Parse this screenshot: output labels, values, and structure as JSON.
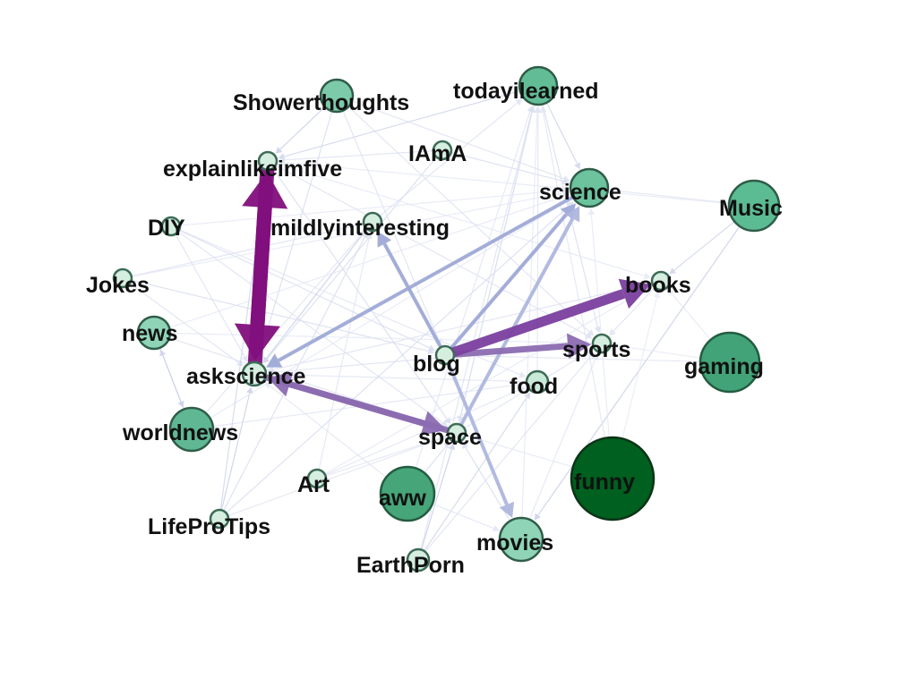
{
  "diagram": {
    "type": "directed-network",
    "nodes": [
      {
        "id": "Showerthoughts",
        "label": "Showerthoughts",
        "fill": "#7ccaa9"
      },
      {
        "id": "todayilearned",
        "label": "todayilearned",
        "fill": "#62bd96"
      },
      {
        "id": "explainlikeimfive",
        "label": "explainlikeimfive",
        "fill": "#d5eee0"
      },
      {
        "id": "IAmA",
        "label": "IAmA",
        "fill": "#d5eee0"
      },
      {
        "id": "science",
        "label": "science",
        "fill": "#6cc39e"
      },
      {
        "id": "Music",
        "label": "Music",
        "fill": "#5bbb93"
      },
      {
        "id": "DIY",
        "label": "DIY",
        "fill": "#d5eee0"
      },
      {
        "id": "mildlyinteresting",
        "label": "mildlyinteresting",
        "fill": "#d5eee0"
      },
      {
        "id": "Jokes",
        "label": "Jokes",
        "fill": "#d5eee0"
      },
      {
        "id": "books",
        "label": "books",
        "fill": "#d5eee0"
      },
      {
        "id": "news",
        "label": "news",
        "fill": "#8fd4b6"
      },
      {
        "id": "sports",
        "label": "sports",
        "fill": "#d5eee0"
      },
      {
        "id": "blog",
        "label": "blog",
        "fill": "#d5eee0"
      },
      {
        "id": "askscience",
        "label": "askscience",
        "fill": "#d5eee0"
      },
      {
        "id": "gaming",
        "label": "gaming",
        "fill": "#42a378"
      },
      {
        "id": "food",
        "label": "food",
        "fill": "#c9e9d8"
      },
      {
        "id": "worldnews",
        "label": "worldnews",
        "fill": "#5fb893"
      },
      {
        "id": "space",
        "label": "space",
        "fill": "#d5eee0"
      },
      {
        "id": "Art",
        "label": "Art",
        "fill": "#d5eee0"
      },
      {
        "id": "aww",
        "label": "aww",
        "fill": "#46a579"
      },
      {
        "id": "funny",
        "label": "funny",
        "fill": "#00601f"
      },
      {
        "id": "LifeProTips",
        "label": "LifeProTips",
        "fill": "#d5eee0"
      },
      {
        "id": "movies",
        "label": "movies",
        "fill": "#8fd4b6"
      },
      {
        "id": "EarthPorn",
        "label": "EarthPorn",
        "fill": "#d5eee0"
      }
    ],
    "edges": [
      {
        "source": "blog",
        "target": "books",
        "weight": 4,
        "color": "#7a3f9e"
      },
      {
        "source": "blog",
        "target": "sports",
        "weight": 3,
        "color": "#8c6bb1"
      },
      {
        "source": "askscience",
        "target": "explainlikeimfive",
        "weight": 5,
        "color": "#810f7c"
      },
      {
        "source": "explainlikeimfive",
        "target": "askscience",
        "weight": 5,
        "color": "#810f7c"
      },
      {
        "source": "askscience",
        "target": "space",
        "weight": 3,
        "color": "#8c6bb1"
      },
      {
        "source": "space",
        "target": "askscience",
        "weight": 3,
        "color": "#8c6bb1"
      },
      {
        "source": "blog",
        "target": "science",
        "weight": 2,
        "color": "#9ea9d6"
      },
      {
        "source": "science",
        "target": "askscience",
        "weight": 2,
        "color": "#9ea9d6"
      },
      {
        "source": "blog",
        "target": "mildlyinteresting",
        "weight": 2,
        "color": "#9ea9d6"
      },
      {
        "source": "blog",
        "target": "movies",
        "weight": 2,
        "color": "#aeb6de"
      },
      {
        "source": "space",
        "target": "science",
        "weight": 2,
        "color": "#aeb6de"
      },
      {
        "source": "LifeProTips",
        "target": "askscience",
        "weight": 1,
        "color": "#c1c8e6"
      },
      {
        "source": "Showerthoughts",
        "target": "explainlikeimfive",
        "weight": 1,
        "color": "#c1c8e6"
      },
      {
        "source": "todayilearned",
        "target": "explainlikeimfive",
        "weight": 1,
        "color": "#c9cfe9"
      },
      {
        "source": "Music",
        "target": "movies",
        "weight": 1,
        "color": "#c1c8e6"
      },
      {
        "source": "Music",
        "target": "books",
        "weight": 1,
        "color": "#c9cfe9"
      },
      {
        "source": "news",
        "target": "worldnews",
        "weight": 1,
        "color": "#c1c8e6"
      },
      {
        "source": "worldnews",
        "target": "news",
        "weight": 1,
        "color": "#c9cfe9"
      },
      {
        "source": "EarthPorn",
        "target": "space",
        "weight": 1,
        "color": "#c1c8e6"
      },
      {
        "source": "EarthPorn",
        "target": "food",
        "weight": 1,
        "color": "#c9cfe9"
      },
      {
        "source": "mildlyinteresting",
        "target": "askscience",
        "weight": 1,
        "color": "#c1c8e6"
      },
      {
        "source": "todayilearned",
        "target": "science",
        "weight": 1,
        "color": "#c9cfe9"
      },
      {
        "source": "IAmA",
        "target": "science",
        "weight": 1,
        "color": "#d3d8ee"
      },
      {
        "source": "DIY",
        "target": "blog",
        "weight": 1,
        "color": "#d3d8ee"
      },
      {
        "source": "Jokes",
        "target": "blog",
        "weight": 1,
        "color": "#d3d8ee"
      },
      {
        "source": "Jokes",
        "target": "mildlyinteresting",
        "weight": 1,
        "color": "#d9ddf0"
      },
      {
        "source": "DIY",
        "target": "askscience",
        "weight": 1,
        "color": "#d9ddf0"
      },
      {
        "source": "news",
        "target": "space",
        "weight": 1,
        "color": "#d9ddf0"
      },
      {
        "source": "worldnews",
        "target": "food",
        "weight": 1,
        "color": "#dde1f2"
      },
      {
        "source": "Art",
        "target": "food",
        "weight": 1,
        "color": "#dde1f2"
      },
      {
        "source": "aww",
        "target": "movies",
        "weight": 1,
        "color": "#dde1f2"
      },
      {
        "source": "LifeProTips",
        "target": "mildlyinteresting",
        "weight": 1,
        "color": "#d3d8ee"
      },
      {
        "source": "Showerthoughts",
        "target": "sports",
        "weight": 1,
        "color": "#d9ddf0"
      },
      {
        "source": "todayilearned",
        "target": "sports",
        "weight": 1,
        "color": "#d3d8ee"
      },
      {
        "source": "todayilearned",
        "target": "space",
        "weight": 1,
        "color": "#d9ddf0"
      },
      {
        "source": "Music",
        "target": "science",
        "weight": 1,
        "color": "#dde1f2"
      },
      {
        "source": "gaming",
        "target": "blog",
        "weight": 1,
        "color": "#dde1f2"
      },
      {
        "source": "funny",
        "target": "todayilearned",
        "weight": 1,
        "color": "#dde1f2"
      },
      {
        "source": "funny",
        "target": "science",
        "weight": 1,
        "color": "#e2e5f4"
      },
      {
        "source": "movies",
        "target": "todayilearned",
        "weight": 1,
        "color": "#e2e5f4"
      },
      {
        "source": "books",
        "target": "askscience",
        "weight": 1,
        "color": "#d9ddf0"
      },
      {
        "source": "sports",
        "target": "askscience",
        "weight": 1,
        "color": "#d9ddf0"
      },
      {
        "source": "food",
        "target": "askscience",
        "weight": 1,
        "color": "#dde1f2"
      },
      {
        "source": "IAmA",
        "target": "askscience",
        "weight": 1,
        "color": "#d3d8ee"
      },
      {
        "source": "IAmA",
        "target": "explainlikeimfive",
        "weight": 1,
        "color": "#d9ddf0"
      },
      {
        "source": "explainlikeimfive",
        "target": "space",
        "weight": 1,
        "color": "#d3d8ee"
      },
      {
        "source": "explainlikeimfive",
        "target": "sports",
        "weight": 1,
        "color": "#d9ddf0"
      },
      {
        "source": "DIY",
        "target": "food",
        "weight": 1,
        "color": "#dde1f2"
      },
      {
        "source": "DIY",
        "target": "space",
        "weight": 1,
        "color": "#d9ddf0"
      },
      {
        "source": "Jokes",
        "target": "askscience",
        "weight": 1,
        "color": "#d9ddf0"
      },
      {
        "source": "Jokes",
        "target": "science",
        "weight": 1,
        "color": "#e2e5f4"
      },
      {
        "source": "worldnews",
        "target": "science",
        "weight": 1,
        "color": "#e2e5f4"
      },
      {
        "source": "LifeProTips",
        "target": "science",
        "weight": 1,
        "color": "#d3d8ee"
      },
      {
        "source": "LifeProTips",
        "target": "explainlikeimfive",
        "weight": 1,
        "color": "#c9cfe9"
      },
      {
        "source": "Art",
        "target": "mildlyinteresting",
        "weight": 1,
        "color": "#dde1f2"
      },
      {
        "source": "Art",
        "target": "books",
        "weight": 1,
        "color": "#e2e5f4"
      },
      {
        "source": "aww",
        "target": "todayilearned",
        "weight": 1,
        "color": "#dde1f2"
      },
      {
        "source": "aww",
        "target": "askscience",
        "weight": 1,
        "color": "#dde1f2"
      },
      {
        "source": "EarthPorn",
        "target": "sports",
        "weight": 1,
        "color": "#d9ddf0"
      },
      {
        "source": "EarthPorn",
        "target": "todayilearned",
        "weight": 1,
        "color": "#d9ddf0"
      },
      {
        "source": "movies",
        "target": "sports",
        "weight": 1,
        "color": "#dde1f2"
      },
      {
        "source": "space",
        "target": "sports",
        "weight": 1,
        "color": "#d9ddf0"
      },
      {
        "source": "food",
        "target": "todayilearned",
        "weight": 1,
        "color": "#dde1f2"
      },
      {
        "source": "gaming",
        "target": "books",
        "weight": 1,
        "color": "#e2e5f4"
      },
      {
        "source": "Music",
        "target": "explainlikeimfive",
        "weight": 1,
        "color": "#e2e5f4"
      },
      {
        "source": "Showerthoughts",
        "target": "science",
        "weight": 1,
        "color": "#d9ddf0"
      },
      {
        "source": "Showerthoughts",
        "target": "askscience",
        "weight": 1,
        "color": "#d3d8ee"
      },
      {
        "source": "Showerthoughts",
        "target": "blog",
        "weight": 1,
        "color": "#d9ddf0"
      },
      {
        "source": "news",
        "target": "sports",
        "weight": 1,
        "color": "#e2e5f4"
      },
      {
        "source": "news",
        "target": "science",
        "weight": 1,
        "color": "#e2e5f4"
      },
      {
        "source": "worldnews",
        "target": "mildlyinteresting",
        "weight": 1,
        "color": "#dde1f2"
      },
      {
        "source": "space",
        "target": "todayilearned",
        "weight": 1,
        "color": "#d9ddf0"
      },
      {
        "source": "aww",
        "target": "space",
        "weight": 1,
        "color": "#d3d8ee"
      },
      {
        "source": "movies",
        "target": "space",
        "weight": 1,
        "color": "#d3d8ee"
      },
      {
        "source": "funny",
        "target": "space",
        "weight": 1,
        "color": "#e2e5f4"
      },
      {
        "source": "books",
        "target": "sports",
        "weight": 1,
        "color": "#d9ddf0"
      },
      {
        "source": "mildlyinteresting",
        "target": "todayilearned",
        "weight": 1,
        "color": "#d9ddf0"
      },
      {
        "source": "explainlikeimfive",
        "target": "books",
        "weight": 1,
        "color": "#e2e5f4"
      },
      {
        "source": "LifeProTips",
        "target": "space",
        "weight": 1,
        "color": "#dde1f2"
      },
      {
        "source": "Art",
        "target": "space",
        "weight": 1,
        "color": "#dde1f2"
      },
      {
        "source": "DIY",
        "target": "science",
        "weight": 1,
        "color": "#e2e5f4"
      },
      {
        "source": "gaming",
        "target": "sports",
        "weight": 1,
        "color": "#e6e8f5"
      },
      {
        "source": "funny",
        "target": "books",
        "weight": 1,
        "color": "#e6e8f5"
      }
    ]
  }
}
